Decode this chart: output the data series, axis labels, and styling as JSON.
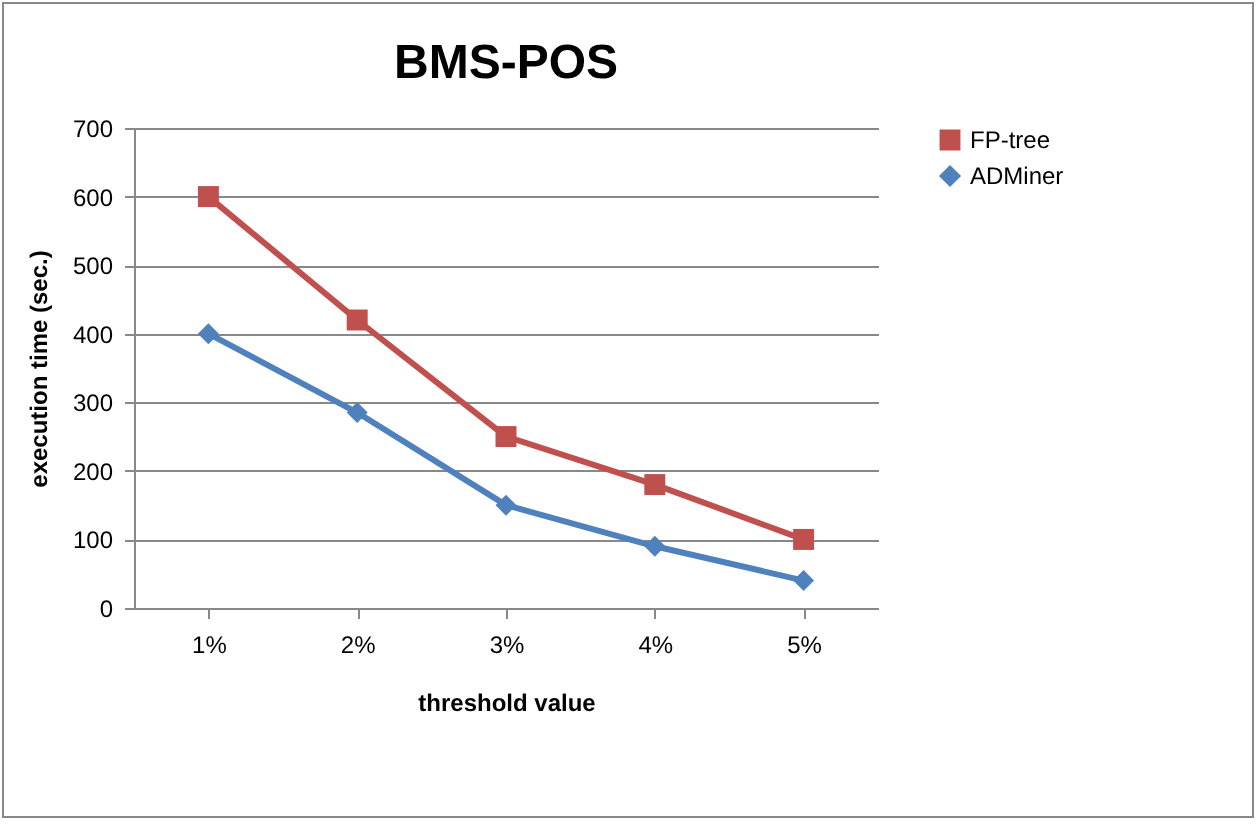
{
  "chart_data": {
    "type": "line",
    "title": "BMS-POS",
    "xlabel": "threshold value",
    "ylabel": "execution time (sec.)",
    "categories": [
      "1%",
      "2%",
      "3%",
      "4%",
      "5%"
    ],
    "series": [
      {
        "name": "FP-tree",
        "color": "#c0504d",
        "marker": "square",
        "values": [
          600,
          420,
          250,
          180,
          100
        ]
      },
      {
        "name": "ADMiner",
        "color": "#4f81bd",
        "marker": "diamond",
        "values": [
          400,
          285,
          150,
          90,
          40
        ]
      }
    ],
    "ylim": [
      0,
      700
    ],
    "yticks": [
      0,
      100,
      200,
      300,
      400,
      500,
      600,
      700
    ],
    "grid": "y",
    "legend": "right"
  }
}
